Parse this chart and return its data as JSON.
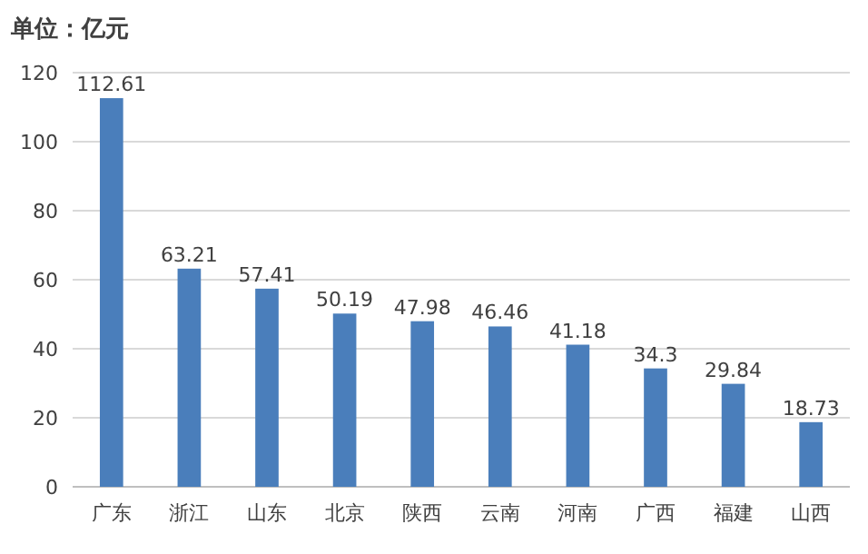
{
  "chart_data": {
    "type": "bar",
    "title": "单位：亿元",
    "categories": [
      "广东",
      "浙江",
      "山东",
      "北京",
      "陕西",
      "云南",
      "河南",
      "广西",
      "福建",
      "山西"
    ],
    "values": [
      112.61,
      63.21,
      57.41,
      50.19,
      47.98,
      46.46,
      41.18,
      34.3,
      29.84,
      18.73
    ],
    "color": "#4a7ebb",
    "ylim": [
      0,
      120
    ],
    "yticks": [
      0,
      20,
      40,
      60,
      80,
      100,
      120
    ],
    "grid": "y",
    "data_labels": true
  }
}
